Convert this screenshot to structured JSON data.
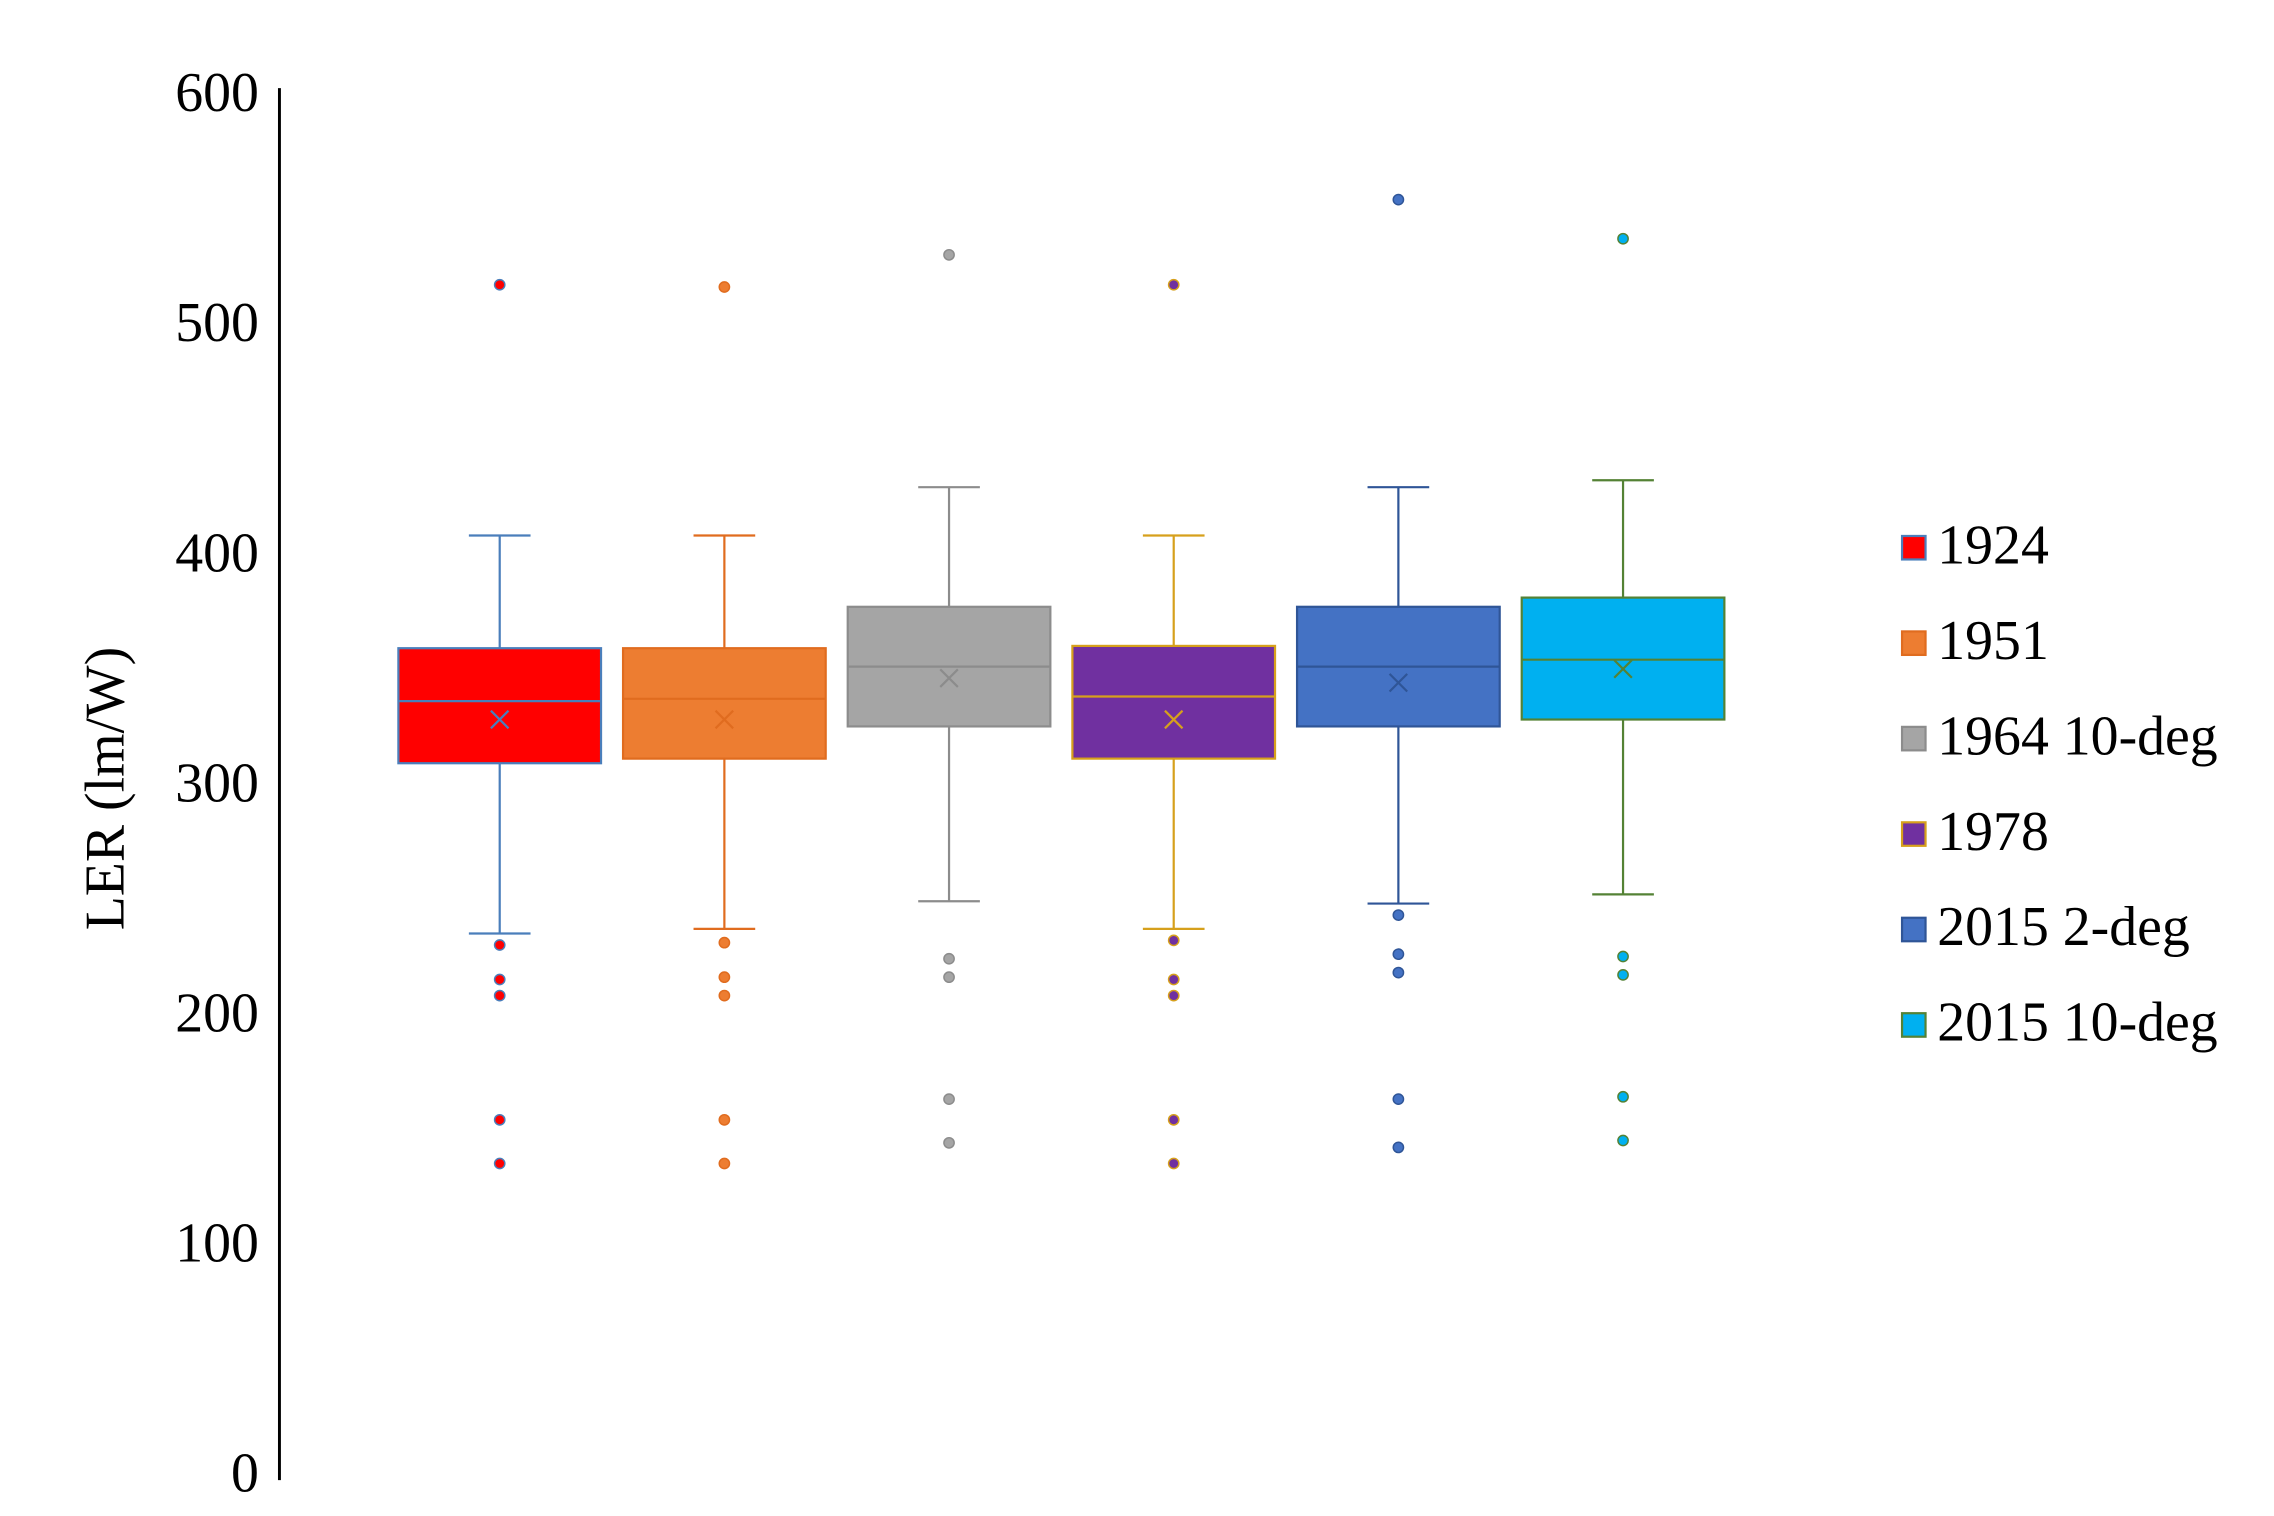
{
  "chart_data": {
    "type": "box",
    "y_label": "LER (lm/W)",
    "ylim": [
      0,
      600
    ],
    "yticks": [
      0,
      100,
      200,
      300,
      400,
      500,
      600
    ],
    "grid": false,
    "legend": "right",
    "series": [
      {
        "name": "1924",
        "color": "#ff0000",
        "line_color": "#4a7ebb",
        "whisker_low": 237,
        "q1": 311,
        "median": 338,
        "q3": 361,
        "whisker_high": 410,
        "mean": 330,
        "outliers": [
          519,
          232,
          217,
          210,
          156,
          137
        ]
      },
      {
        "name": "1951",
        "color": "#ed7d31",
        "line_color": "#e06c1f",
        "whisker_low": 239,
        "q1": 313,
        "median": 339,
        "q3": 361,
        "whisker_high": 410,
        "mean": 330,
        "outliers": [
          518,
          233,
          218,
          210,
          156,
          137
        ]
      },
      {
        "name": "1964 10-deg",
        "color": "#a5a5a5",
        "line_color": "#8c8c8c",
        "whisker_low": 251,
        "q1": 327,
        "median": 353,
        "q3": 379,
        "whisker_high": 431,
        "mean": 348,
        "outliers": [
          532,
          226,
          218,
          165,
          146
        ]
      },
      {
        "name": "1978",
        "color": "#7030a0",
        "line_color": "#d6a01c",
        "whisker_low": 239,
        "q1": 313,
        "median": 340,
        "q3": 362,
        "whisker_high": 410,
        "mean": 330,
        "outliers": [
          519,
          234,
          217,
          210,
          156,
          137
        ]
      },
      {
        "name": "2015 2-deg",
        "color": "#4472c4",
        "line_color": "#2f5597",
        "whisker_low": 250,
        "q1": 327,
        "median": 353,
        "q3": 379,
        "whisker_high": 431,
        "mean": 346,
        "outliers": [
          556,
          245,
          228,
          220,
          165,
          144
        ]
      },
      {
        "name": "2015 10-deg",
        "color": "#00b0f0",
        "line_color": "#548235",
        "whisker_low": 254,
        "q1": 330,
        "median": 356,
        "q3": 383,
        "whisker_high": 434,
        "mean": 352,
        "outliers": [
          539,
          227,
          219,
          166,
          147
        ]
      }
    ]
  }
}
